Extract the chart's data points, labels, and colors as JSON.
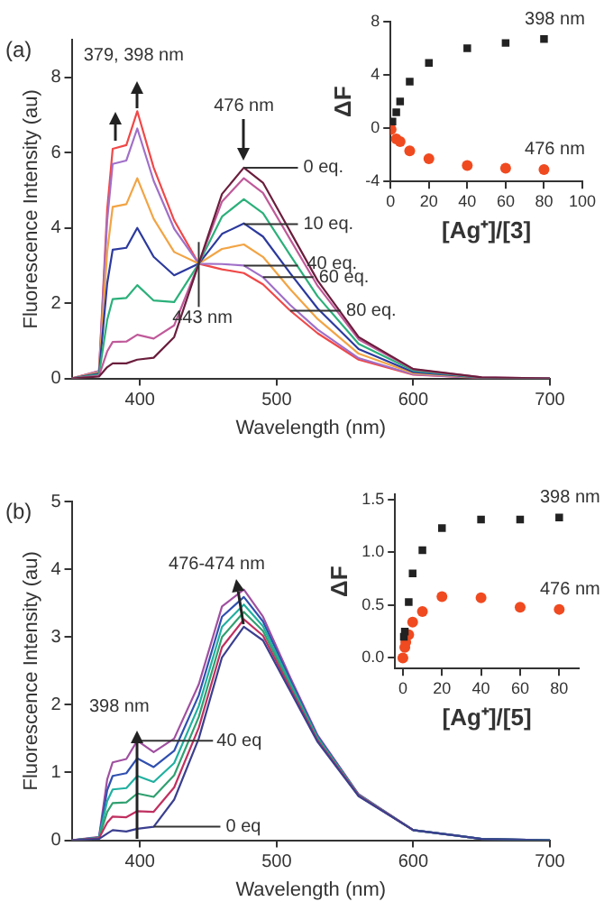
{
  "chart_data": [
    {
      "type": "line",
      "title": "(a)",
      "xlabel": "Wavelength (nm)",
      "ylabel": "Fluorescence Intensity (au)",
      "xlim": [
        350,
        700
      ],
      "xticks": [
        400,
        500,
        600,
        700
      ],
      "ylim": [
        0,
        9
      ],
      "yticks": [
        0,
        2,
        4,
        6,
        8
      ],
      "grid": false,
      "legend": false,
      "marker": "none",
      "line_style": "solid",
      "x": [
        350,
        370,
        376,
        380,
        390,
        398,
        410,
        425,
        443,
        460,
        476,
        490,
        510,
        530,
        560,
        600,
        650,
        700
      ],
      "series": [
        {
          "color": "#6b1e3c",
          "values": [
            0,
            0.05,
            0.3,
            0.4,
            0.4,
            0.5,
            0.55,
            1.1,
            3.05,
            4.9,
            5.6,
            5.2,
            3.9,
            2.6,
            1.1,
            0.25,
            0.03,
            0
          ]
        },
        {
          "color": "#c05a9a",
          "values": [
            0,
            0.07,
            0.72,
            0.97,
            0.98,
            1.16,
            1.06,
            1.41,
            3.05,
            4.7,
            5.32,
            4.93,
            3.69,
            2.46,
            1.04,
            0.24,
            0.03,
            0
          ]
        },
        {
          "color": "#2bb07a",
          "values": [
            0,
            0.1,
            1.56,
            2.11,
            2.14,
            2.48,
            2.07,
            2.03,
            3.05,
            4.3,
            4.76,
            4.39,
            3.27,
            2.18,
            0.92,
            0.21,
            0.02,
            0
          ]
        },
        {
          "color": "#2c3a9e",
          "values": [
            0,
            0.13,
            2.53,
            3.42,
            3.47,
            4.0,
            3.23,
            2.74,
            3.05,
            3.84,
            4.12,
            3.77,
            2.79,
            1.86,
            0.78,
            0.17,
            0.02,
            0
          ]
        },
        {
          "color": "#f2a444",
          "values": [
            0,
            0.16,
            3.37,
            4.56,
            4.63,
            5.32,
            4.24,
            3.36,
            3.05,
            3.44,
            3.56,
            3.23,
            2.37,
            1.58,
            0.66,
            0.14,
            0.02,
            0
          ]
        },
        {
          "color": "#a070c8",
          "values": [
            0,
            0.19,
            4.21,
            5.7,
            5.79,
            6.64,
            5.25,
            3.98,
            3.05,
            3.04,
            3.0,
            2.69,
            1.95,
            1.3,
            0.54,
            0.11,
            0.01,
            0
          ]
        },
        {
          "color": "#f04848",
          "values": [
            0,
            0.2,
            4.5,
            6.1,
            6.2,
            7.1,
            5.6,
            4.2,
            3.05,
            2.9,
            2.8,
            2.5,
            1.8,
            1.2,
            0.5,
            0.1,
            0.01,
            0
          ]
        }
      ],
      "annotations": [
        {
          "text": "379, 398 nm",
          "x": 398,
          "y": 7.1
        },
        {
          "text": "476 nm",
          "x": 476,
          "y": 5.6
        },
        {
          "text": "0 eq.",
          "x": 476,
          "y": 5.6
        },
        {
          "text": "10 eq.",
          "x": 476,
          "y": 4.1
        },
        {
          "text": "40 eq.",
          "x": 476,
          "y": 3.0
        },
        {
          "text": "60 eq.",
          "x": 490,
          "y": 2.69
        },
        {
          "text": "80 eq.",
          "x": 510,
          "y": 1.8
        },
        {
          "text": "443 nm",
          "x": 443,
          "y": 3.05
        }
      ]
    },
    {
      "type": "scatter",
      "xlabel": "[Ag⁺]/[3]",
      "ylabel": "ΔF",
      "xlim": [
        0,
        100
      ],
      "xticks": [
        0,
        20,
        40,
        60,
        80,
        100
      ],
      "ylim": [
        -4,
        8
      ],
      "yticks": [
        -4,
        0,
        4,
        8
      ],
      "grid": false,
      "legend": false,
      "series": [
        {
          "name": "398 nm",
          "color": "#222222",
          "marker": "square",
          "x": [
            1,
            3,
            5,
            10,
            20,
            40,
            60,
            80
          ],
          "values": [
            0.5,
            1.2,
            2.0,
            3.5,
            4.9,
            6.0,
            6.4,
            6.7
          ]
        },
        {
          "name": "476 nm",
          "color": "#f04a20",
          "marker": "circle",
          "x": [
            0.3,
            3,
            5,
            10,
            20,
            40,
            60,
            80
          ],
          "values": [
            -0.1,
            -0.8,
            -1.0,
            -1.7,
            -2.3,
            -2.8,
            -3.0,
            -3.1
          ]
        }
      ]
    },
    {
      "type": "line",
      "title": "(b)",
      "xlabel": "Wavelength (nm)",
      "ylabel": "Fluorescence Intensity (au)",
      "xlim": [
        350,
        700
      ],
      "xticks": [
        400,
        500,
        600,
        700
      ],
      "ylim": [
        0,
        5
      ],
      "yticks": [
        0,
        1,
        2,
        3,
        4,
        5
      ],
      "grid": false,
      "legend": false,
      "marker": "none",
      "line_style": "solid",
      "x": [
        350,
        370,
        376,
        380,
        390,
        398,
        410,
        425,
        443,
        460,
        476,
        490,
        510,
        530,
        560,
        600,
        650,
        700
      ],
      "series": [
        {
          "color": "#3b3f8f",
          "values": [
            0,
            0.02,
            0.1,
            0.15,
            0.13,
            0.17,
            0.2,
            0.6,
            1.5,
            2.7,
            3.15,
            2.95,
            2.2,
            1.45,
            0.65,
            0.15,
            0.02,
            0
          ]
        },
        {
          "color": "#c03060",
          "values": [
            0,
            0.03,
            0.26,
            0.35,
            0.34,
            0.43,
            0.42,
            0.78,
            1.66,
            2.85,
            3.26,
            3.02,
            2.24,
            1.47,
            0.66,
            0.15,
            null,
            null
          ]
        },
        {
          "color": "#30a070",
          "values": [
            0,
            0.03,
            0.42,
            0.55,
            0.56,
            0.69,
            0.64,
            0.96,
            1.82,
            3.0,
            3.37,
            3.09,
            2.28,
            1.49,
            0.66,
            0.15,
            0.02,
            0
          ]
        },
        {
          "color": "#20b0a0",
          "values": [
            0,
            0.04,
            0.58,
            0.75,
            0.77,
            0.95,
            0.86,
            1.14,
            1.98,
            3.15,
            3.48,
            3.16,
            2.32,
            1.51,
            0.67,
            0.15,
            null,
            null
          ]
        },
        {
          "color": "#3050b0",
          "values": [
            0,
            0.04,
            0.74,
            0.95,
            0.99,
            1.21,
            1.08,
            1.32,
            2.14,
            3.3,
            3.59,
            3.23,
            2.36,
            1.53,
            0.67,
            0.15,
            0.02,
            0
          ]
        },
        {
          "color": "#a050a0",
          "values": [
            0,
            0.05,
            0.9,
            1.15,
            1.2,
            1.47,
            1.3,
            1.5,
            2.3,
            3.45,
            3.7,
            3.3,
            2.4,
            1.55,
            0.68,
            0.15,
            0.02,
            0
          ]
        }
      ],
      "annotations": [
        {
          "text": "476-474 nm",
          "x": 472,
          "y": 3.75
        },
        {
          "text": "398 nm",
          "x": 398,
          "y": 1.47
        },
        {
          "text": "40 eq",
          "x": 398,
          "y": 1.47
        },
        {
          "text": "0 eq",
          "x": 410,
          "y": 0.2
        }
      ]
    },
    {
      "type": "scatter",
      "xlabel": "[Ag⁺]/[5]",
      "ylabel": "ΔF",
      "xlim": [
        -4,
        90
      ],
      "xticks": [
        0,
        20,
        40,
        60,
        80
      ],
      "ylim": [
        -0.1,
        1.55
      ],
      "yticks": [
        {
          "value": 0,
          "label": "0.0"
        },
        {
          "value": 0.5,
          "label": "0.5"
        },
        {
          "value": 1,
          "label": "1.0"
        },
        {
          "value": 1.5,
          "label": "1.5"
        }
      ],
      "grid": false,
      "legend": false,
      "series": [
        {
          "name": "398 nm",
          "color": "#222222",
          "marker": "square",
          "x": [
            0.5,
            1,
            3,
            5,
            10,
            20,
            40,
            60,
            80
          ],
          "values": [
            0.2,
            0.25,
            0.53,
            0.8,
            1.02,
            1.23,
            1.31,
            1.31,
            1.33
          ]
        },
        {
          "name": "476 nm",
          "color": "#f04a20",
          "marker": "circle",
          "x": [
            0,
            1,
            1.5,
            3,
            5,
            10,
            20,
            40,
            60,
            80
          ],
          "values": [
            0,
            0.1,
            0.15,
            0.22,
            0.34,
            0.44,
            0.58,
            0.57,
            0.48,
            0.46
          ]
        }
      ]
    }
  ]
}
